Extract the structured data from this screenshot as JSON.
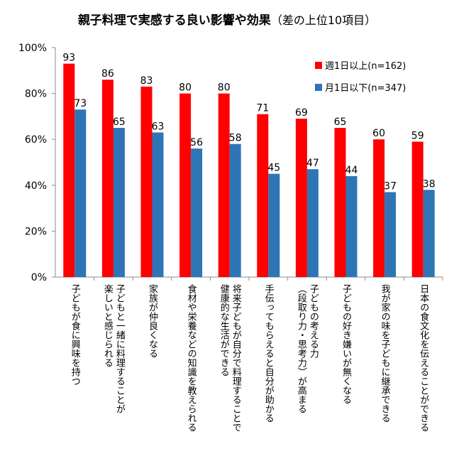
{
  "chart_data": {
    "type": "bar",
    "title": "親子料理で実感する良い影響や効果",
    "subtitle": "（差の上位10項目）",
    "ylim": [
      0,
      100
    ],
    "yticks": [
      "0%",
      "20%",
      "40%",
      "60%",
      "80%",
      "100%"
    ],
    "grid": false,
    "legend_position": "top-right",
    "categories": [
      [
        "子どもが食に興味を持つ"
      ],
      [
        "子どもと一緒に料理することが",
        "楽しいと感じられる"
      ],
      [
        "家族が仲良くなる"
      ],
      [
        "食材や栄養などの知識を教えられる"
      ],
      [
        "将来子どもが自分で料理することで",
        "健康的な生活ができる"
      ],
      [
        "手伝ってもらえると自分が助かる"
      ],
      [
        "子どもの考える力",
        "（段取り力・思考力）が高まる"
      ],
      [
        "子どもの好き嫌いが無くなる"
      ],
      [
        "我が家の味を子どもに継承できる"
      ],
      [
        "日本の食文化を伝えることができる"
      ]
    ],
    "series": [
      {
        "name": "週1日以上(n=162)",
        "color": "#ff0000",
        "values": [
          93,
          86,
          83,
          80,
          80,
          71,
          69,
          65,
          60,
          59
        ]
      },
      {
        "name": "月1日以下(n=347)",
        "color": "#2e75b6",
        "values": [
          73,
          65,
          63,
          56,
          58,
          45,
          47,
          44,
          37,
          38
        ]
      }
    ]
  }
}
